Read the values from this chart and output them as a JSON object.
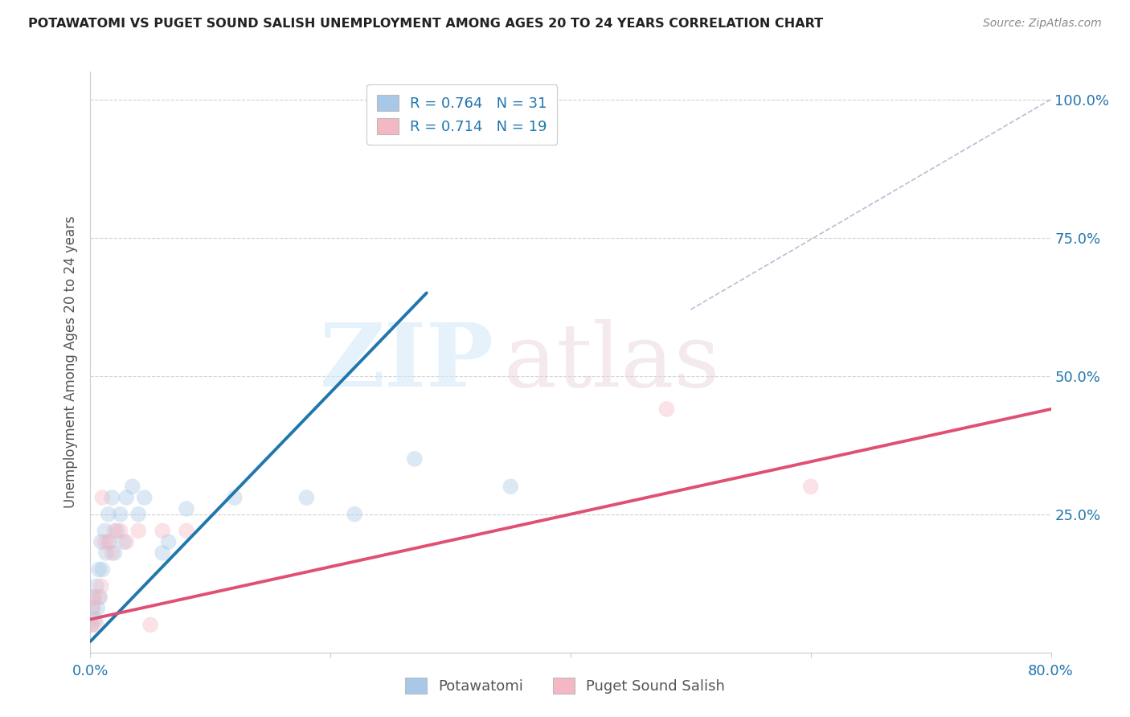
{
  "title": "POTAWATOMI VS PUGET SOUND SALISH UNEMPLOYMENT AMONG AGES 20 TO 24 YEARS CORRELATION CHART",
  "source": "Source: ZipAtlas.com",
  "ylabel": "Unemployment Among Ages 20 to 24 years",
  "xlim": [
    0.0,
    0.8
  ],
  "ylim": [
    0.0,
    1.05
  ],
  "xticks": [
    0.0,
    0.2,
    0.4,
    0.6,
    0.8
  ],
  "xticklabels": [
    "0.0%",
    "",
    "",
    "",
    "80.0%"
  ],
  "yticks": [
    0.0,
    0.25,
    0.5,
    0.75,
    1.0
  ],
  "right_yticklabels": [
    "",
    "25.0%",
    "50.0%",
    "75.0%",
    "100.0%"
  ],
  "blue_color": "#a8c8e8",
  "pink_color": "#f4b8c4",
  "blue_line_color": "#2176ae",
  "pink_line_color": "#e05070",
  "legend_r_blue": "R = 0.764",
  "legend_n_blue": "N = 31",
  "legend_r_pink": "R = 0.714",
  "legend_n_pink": "N = 19",
  "legend_label_blue": "Potawatomi",
  "legend_label_pink": "Puget Sound Salish",
  "blue_scatter_x": [
    0.001,
    0.002,
    0.003,
    0.004,
    0.005,
    0.006,
    0.007,
    0.008,
    0.009,
    0.01,
    0.012,
    0.013,
    0.015,
    0.016,
    0.018,
    0.02,
    0.022,
    0.025,
    0.028,
    0.03,
    0.035,
    0.04,
    0.045,
    0.06,
    0.065,
    0.08,
    0.12,
    0.18,
    0.22,
    0.27,
    0.35
  ],
  "blue_scatter_y": [
    0.05,
    0.08,
    0.1,
    0.06,
    0.12,
    0.08,
    0.15,
    0.1,
    0.2,
    0.15,
    0.22,
    0.18,
    0.25,
    0.2,
    0.28,
    0.18,
    0.22,
    0.25,
    0.2,
    0.28,
    0.3,
    0.25,
    0.28,
    0.18,
    0.2,
    0.26,
    0.28,
    0.28,
    0.25,
    0.35,
    0.3
  ],
  "pink_scatter_x": [
    0.001,
    0.002,
    0.003,
    0.005,
    0.007,
    0.009,
    0.01,
    0.012,
    0.015,
    0.018,
    0.02,
    0.025,
    0.03,
    0.04,
    0.05,
    0.06,
    0.08,
    0.48,
    0.6
  ],
  "pink_scatter_y": [
    0.05,
    0.08,
    0.1,
    0.05,
    0.1,
    0.12,
    0.28,
    0.2,
    0.2,
    0.18,
    0.22,
    0.22,
    0.2,
    0.22,
    0.05,
    0.22,
    0.22,
    0.44,
    0.3
  ],
  "blue_line_x": [
    0.0,
    0.28
  ],
  "blue_line_y": [
    0.02,
    0.65
  ],
  "pink_line_x": [
    0.0,
    0.8
  ],
  "pink_line_y": [
    0.06,
    0.44
  ],
  "ref_line_x": [
    0.5,
    0.8
  ],
  "ref_line_y": [
    0.62,
    1.0
  ],
  "watermark_zip": "ZIP",
  "watermark_atlas": "atlas",
  "background_color": "#ffffff",
  "grid_color": "#cccccc",
  "title_color": "#333333",
  "axis_label_color": "#555555",
  "tick_color": "#2176ae",
  "scatter_size": 200,
  "scatter_alpha": 0.4,
  "line_width": 2.8
}
